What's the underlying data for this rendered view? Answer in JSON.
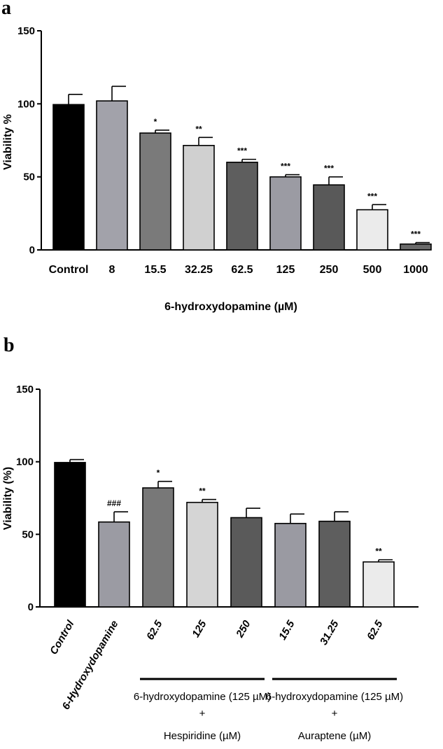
{
  "chart_data": [
    {
      "panel": "a",
      "type": "bar",
      "title": "",
      "ylabel": "Viability %",
      "xlabel": "6-hydroxydopamine (µM)",
      "ylim": [
        0,
        150
      ],
      "yticks": [
        "0",
        "50",
        "100",
        "150"
      ],
      "categories": [
        "Control",
        "8",
        "15.5",
        "32.25",
        "62.5",
        "125",
        "250",
        "500",
        "1000"
      ],
      "values": [
        99.5,
        102,
        80,
        71.5,
        60,
        50,
        44.5,
        27.5,
        4
      ],
      "errors": [
        7,
        10,
        2,
        5.5,
        2,
        1.5,
        5.5,
        3.5,
        1
      ],
      "significance": [
        "",
        "",
        "*",
        "**",
        "***",
        "***",
        "***",
        "***",
        "***"
      ],
      "colors": [
        "#000000",
        "#a2a2aa",
        "#7a7a7a",
        "#d0d0d0",
        "#5e5e5e",
        "#9b9ba3",
        "#595959",
        "#ebebeb",
        "#6a6a6a"
      ]
    },
    {
      "panel": "b",
      "type": "bar",
      "title": "",
      "ylabel": "Viability  (%)",
      "xlabel": "",
      "ylim": [
        0,
        150
      ],
      "yticks": [
        "0",
        "50",
        "100",
        "150"
      ],
      "categories": [
        "Control",
        "6-Hydroxydopamine",
        "62.5",
        "125",
        "250",
        "15.5",
        "31.25",
        "62.5"
      ],
      "values": [
        99.5,
        58.5,
        82,
        72,
        61.5,
        57.5,
        59,
        31
      ],
      "errors": [
        2,
        7,
        4.5,
        2,
        6.5,
        6.5,
        6.5,
        1.5
      ],
      "significance": [
        "",
        "###",
        "*",
        "**",
        "",
        "",
        "",
        "**"
      ],
      "colors": [
        "#000000",
        "#9b9ba3",
        "#787878",
        "#d5d5d5",
        "#5a5a5a",
        "#9a9aa2",
        "#5e5e5e",
        "#ebebeb"
      ],
      "groups": [
        {
          "line1": "6-hydroxydopamine (125 µM)",
          "line2": "+",
          "line3": "Hespiridine (µM)",
          "from": 2,
          "to": 4
        },
        {
          "line1": "6-hydroxydopamine (125 µM)",
          "line2": "+",
          "line3": "Auraptene (µM)",
          "from": 5,
          "to": 7
        }
      ]
    }
  ]
}
